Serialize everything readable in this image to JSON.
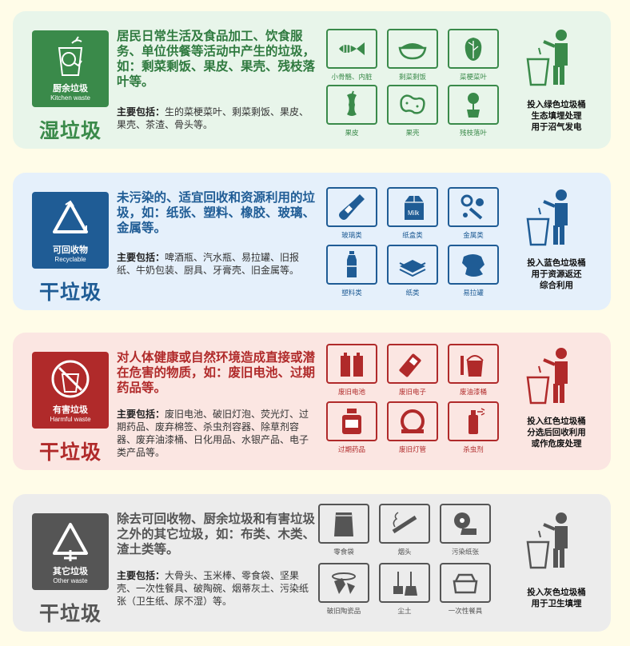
{
  "panels": [
    {
      "id": "kitchen",
      "color": "#3a8a4a",
      "bg": "#e8f5ea",
      "badge_cn": "厨余垃圾",
      "badge_en": "Kitchen waste",
      "category": "湿垃圾",
      "description": "居民日常生活及食品加工、饮食服务、单位供餐等活动中产生的垃圾，如：剩菜剩饭、果皮、果壳、残枝落叶等。",
      "includes_label": "主要包括：",
      "includes": "生的菜梗菜叶、剩菜剩饭、果皮、果壳、茶渣、骨头等。",
      "items": [
        {
          "label": "小骨骼、内脏",
          "icon": "fish-bone-icon"
        },
        {
          "label": "剩菜剩饭",
          "icon": "rice-bowl-icon"
        },
        {
          "label": "菜梗菜叶",
          "icon": "cabbage-icon"
        },
        {
          "label": "果皮",
          "icon": "apple-core-icon"
        },
        {
          "label": "果壳",
          "icon": "peanut-shell-icon"
        },
        {
          "label": "残枝落叶",
          "icon": "potted-plant-icon"
        }
      ],
      "dispose_lines": [
        "投入绿色垃圾桶",
        "生态填埋处理",
        "用于沼气发电"
      ]
    },
    {
      "id": "recyclable",
      "color": "#1f5c95",
      "bg": "#e5f0fb",
      "badge_cn": "可回收物",
      "badge_en": "Recyclable",
      "category": "干垃圾",
      "description": "未污染的、适宜回收和资源利用的垃圾，如：纸张、塑料、橡胶、玻璃、金属等。",
      "includes_label": "主要包括：",
      "includes": "啤酒瓶、汽水瓶、易拉罐、旧报纸、牛奶包装、厨具、牙膏壳、旧金属等。",
      "items": [
        {
          "label": "玻璃类",
          "icon": "glass-bottle-icon"
        },
        {
          "label": "纸盒类",
          "icon": "milk-carton-icon"
        },
        {
          "label": "金属类",
          "icon": "metal-parts-icon"
        },
        {
          "label": "塑料类",
          "icon": "plastic-bottle-icon"
        },
        {
          "label": "纸类",
          "icon": "paper-stack-icon"
        },
        {
          "label": "易拉罐",
          "icon": "crushed-can-icon"
        }
      ],
      "dispose_lines": [
        "投入蓝色垃圾桶",
        "用于资源返还",
        "综合利用"
      ]
    },
    {
      "id": "hazardous",
      "color": "#b02a2a",
      "bg": "#fbe6e2",
      "badge_cn": "有害垃圾",
      "badge_en": "Harmful waste",
      "category": "干垃圾",
      "description": "对人体健康或自然环境造成直接或潜在危害的物质，如：废旧电池、过期药品等。",
      "includes_label": "主要包括：",
      "includes": "废旧电池、破旧灯泡、荧光灯、过期药品、废弃棉签、杀虫剂容器、除草剂容器、废弃油漆桶、日化用品、水银产品、电子类产品等。",
      "items": [
        {
          "label": "废旧电池",
          "icon": "battery-icon"
        },
        {
          "label": "废旧电子",
          "icon": "mobile-phone-icon"
        },
        {
          "label": "废油漆桶",
          "icon": "paint-bucket-icon"
        },
        {
          "label": "过期药品",
          "icon": "medicine-bottle-icon"
        },
        {
          "label": "废旧灯管",
          "icon": "fluorescent-tube-icon"
        },
        {
          "label": "杀虫剂",
          "icon": "spray-can-icon"
        }
      ],
      "dispose_lines": [
        "投入红色垃圾桶",
        "分选后回收利用",
        "或作危废处理"
      ]
    },
    {
      "id": "other",
      "color": "#555555",
      "bg": "#ececec",
      "badge_cn": "其它垃圾",
      "badge_en": "Other waste",
      "category": "干垃圾",
      "description": "除去可回收物、厨余垃圾和有害垃圾之外的其它垃圾，如：布类、木类、渣土类等。",
      "includes_label": "主要包括：",
      "includes": "大骨头、玉米棒、零食袋、坚果壳、一次性餐具、破陶碗、烟蒂灰土、污染纸张（卫生纸、尿不湿）等。",
      "items": [
        {
          "label": "零食袋",
          "icon": "snack-bag-icon"
        },
        {
          "label": "烟头",
          "icon": "cigarette-icon"
        },
        {
          "label": "污染纸张",
          "icon": "toilet-roll-icon"
        },
        {
          "label": "破旧陶瓷品",
          "icon": "broken-ceramic-icon"
        },
        {
          "label": "尘土",
          "icon": "dustpan-broom-icon"
        },
        {
          "label": "一次性餐具",
          "icon": "takeout-box-icon"
        }
      ],
      "dispose_lines": [
        "投入灰色垃圾桶",
        "用于卫生填埋"
      ]
    }
  ]
}
